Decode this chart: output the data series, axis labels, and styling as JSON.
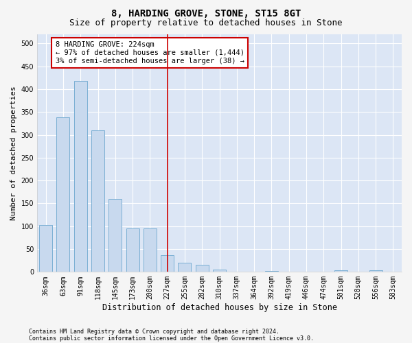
{
  "title": "8, HARDING GROVE, STONE, ST15 8GT",
  "subtitle": "Size of property relative to detached houses in Stone",
  "xlabel": "Distribution of detached houses by size in Stone",
  "ylabel": "Number of detached properties",
  "categories": [
    "36sqm",
    "63sqm",
    "91sqm",
    "118sqm",
    "145sqm",
    "173sqm",
    "200sqm",
    "227sqm",
    "255sqm",
    "282sqm",
    "310sqm",
    "337sqm",
    "364sqm",
    "392sqm",
    "419sqm",
    "446sqm",
    "474sqm",
    "501sqm",
    "528sqm",
    "556sqm",
    "583sqm"
  ],
  "values": [
    103,
    338,
    418,
    310,
    160,
    95,
    95,
    37,
    20,
    15,
    5,
    0,
    0,
    2,
    0,
    0,
    0,
    3,
    0,
    3,
    0
  ],
  "bar_color": "#c8d9ee",
  "bar_edge_color": "#7bafd4",
  "vline_x_index": 7,
  "vline_color": "#cc0000",
  "annotation_text": "8 HARDING GROVE: 224sqm\n← 97% of detached houses are smaller (1,444)\n3% of semi-detached houses are larger (38) →",
  "annotation_box_color": "#cc0000",
  "ylim": [
    0,
    520
  ],
  "yticks": [
    0,
    50,
    100,
    150,
    200,
    250,
    300,
    350,
    400,
    450,
    500
  ],
  "footer1": "Contains HM Land Registry data © Crown copyright and database right 2024.",
  "footer2": "Contains public sector information licensed under the Open Government Licence v3.0.",
  "plot_bg_color": "#dce6f5",
  "fig_bg_color": "#f5f5f5",
  "grid_color": "#ffffff",
  "title_fontsize": 10,
  "subtitle_fontsize": 9,
  "ylabel_fontsize": 8,
  "xlabel_fontsize": 8.5,
  "tick_fontsize": 7,
  "annotation_fontsize": 7.5,
  "footer_fontsize": 6,
  "bar_width": 0.75
}
